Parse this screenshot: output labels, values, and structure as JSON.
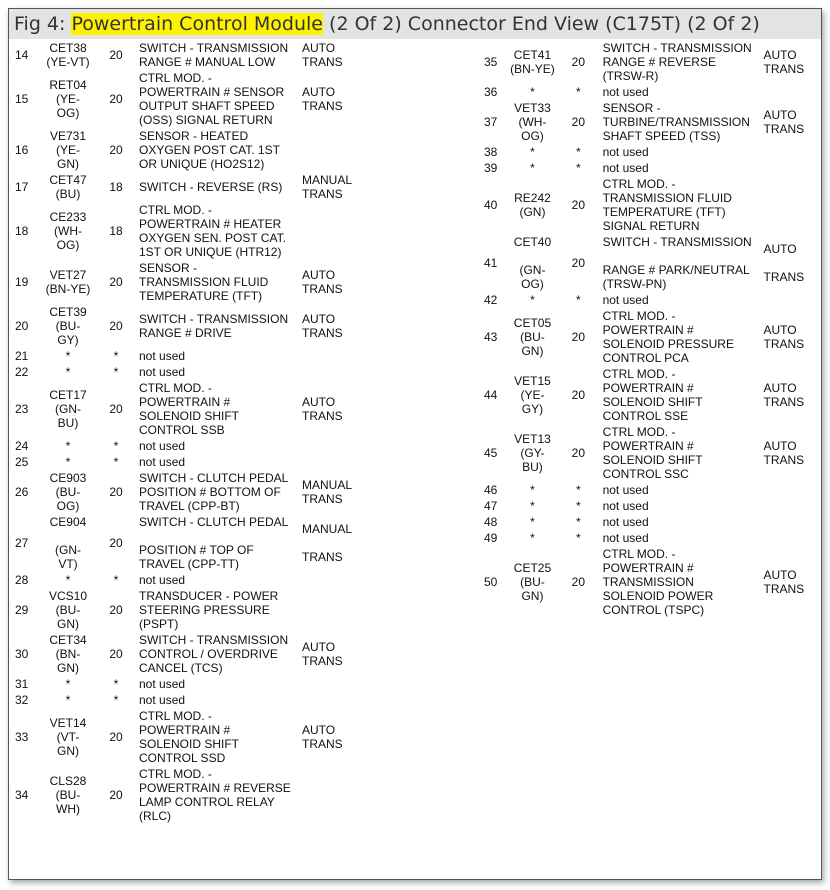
{
  "header": {
    "prefix": "Fig 4: ",
    "highlight": "Powertrain Control Module",
    "suffix": " (2 Of 2) Connector End View (C175T) (2 Of 2)"
  },
  "colors": {
    "highlight": "#fff200",
    "header_bg": "#e3e3e3"
  },
  "left_rows": [
    {
      "pin": "14",
      "wire": "CET38\n(YE-VT)",
      "gauge": "20",
      "desc": "SWITCH - TRANSMISSION\nRANGE # MANUAL LOW",
      "note": "AUTO\nTRANS"
    },
    {
      "pin": "15",
      "wire": "RET04\n(YE-\nOG)",
      "gauge": "20",
      "desc": "CTRL MOD. -\nPOWERTRAIN # SENSOR\nOUTPUT SHAFT SPEED\n(OSS) SIGNAL RETURN",
      "note": "AUTO\nTRANS"
    },
    {
      "pin": "16",
      "wire": "VE731\n(YE-\nGN)",
      "gauge": "20",
      "desc": "SENSOR - HEATED\nOXYGEN POST CAT. 1ST\nOR UNIQUE (HO2S12)",
      "note": ""
    },
    {
      "pin": "17",
      "wire": "CET47\n(BU)",
      "gauge": "18",
      "desc": "SWITCH - REVERSE (RS)",
      "note": "MANUAL\nTRANS"
    },
    {
      "pin": "18",
      "wire": "CE233\n(WH-\nOG)",
      "gauge": "18",
      "desc": "CTRL MOD. -\nPOWERTRAIN # HEATER\nOXYGEN SEN. POST CAT.\n1ST OR UNIQUE (HTR12)",
      "note": ""
    },
    {
      "pin": "19",
      "wire": "VET27\n(BN-YE)",
      "gauge": "20",
      "desc": "SENSOR -\nTRANSMISSION FLUID\nTEMPERATURE (TFT)",
      "note": "AUTO\nTRANS"
    },
    {
      "pin": "20",
      "wire": "CET39\n(BU-\nGY)",
      "gauge": "20",
      "desc": "SWITCH - TRANSMISSION\nRANGE # DRIVE",
      "note": "AUTO\nTRANS"
    },
    {
      "pin": "21",
      "wire": "*",
      "gauge": "*",
      "desc": "not used",
      "note": ""
    },
    {
      "pin": "22",
      "wire": "*",
      "gauge": "*",
      "desc": "not used",
      "note": ""
    },
    {
      "pin": "23",
      "wire": "CET17\n(GN-\nBU)",
      "gauge": "20",
      "desc": "CTRL MOD. -\nPOWERTRAIN #\nSOLENOID SHIFT\nCONTROL SSB",
      "note": "AUTO\nTRANS"
    },
    {
      "pin": "24",
      "wire": "*",
      "gauge": "*",
      "desc": "not used",
      "note": ""
    },
    {
      "pin": "25",
      "wire": "*",
      "gauge": "*",
      "desc": "not used",
      "note": ""
    },
    {
      "pin": "26",
      "wire": "CE903\n(BU-\nOG)",
      "gauge": "20",
      "desc": "SWITCH - CLUTCH PEDAL\nPOSITION # BOTTOM OF\nTRAVEL (CPP-BT)",
      "note": "MANUAL\nTRANS"
    },
    {
      "pin": "27",
      "wire": "CE904\n\n(GN-\nVT)",
      "gauge": "20",
      "desc": "SWITCH - CLUTCH PEDAL\n\nPOSITION # TOP OF\nTRAVEL (CPP-TT)",
      "note": "MANUAL\n\nTRANS\n"
    },
    {
      "pin": "28",
      "wire": "*",
      "gauge": "*",
      "desc": "not used",
      "note": ""
    },
    {
      "pin": "29",
      "wire": "VCS10\n(BU-\nGN)",
      "gauge": "20",
      "desc": "TRANSDUCER - POWER\nSTEERING PRESSURE\n(PSPT)",
      "note": ""
    },
    {
      "pin": "30",
      "wire": "CET34\n(BN-\nGN)",
      "gauge": "20",
      "desc": "SWITCH - TRANSMISSION\nCONTROL / OVERDRIVE\nCANCEL (TCS)",
      "note": "AUTO\nTRANS"
    },
    {
      "pin": "31",
      "wire": "*",
      "gauge": "*",
      "desc": "not used",
      "note": ""
    },
    {
      "pin": "32",
      "wire": "*",
      "gauge": "*",
      "desc": "not used",
      "note": ""
    },
    {
      "pin": "33",
      "wire": "VET14\n(VT-\nGN)",
      "gauge": "20",
      "desc": "CTRL MOD. -\nPOWERTRAIN #\nSOLENOID SHIFT\nCONTROL SSD",
      "note": "AUTO\nTRANS"
    },
    {
      "pin": "34",
      "wire": "CLS28\n(BU-\nWH)",
      "gauge": "20",
      "desc": "CTRL MOD. -\nPOWERTRAIN # REVERSE\nLAMP CONTROL RELAY\n(RLC)",
      "note": ""
    }
  ],
  "right_rows": [
    {
      "pin": "35",
      "wire": "CET41\n(BN-YE)",
      "gauge": "20",
      "desc": "SWITCH - TRANSMISSION\nRANGE # REVERSE\n(TRSW-R)",
      "note": "AUTO\nTRANS"
    },
    {
      "pin": "36",
      "wire": "*",
      "gauge": "*",
      "desc": "not used",
      "note": ""
    },
    {
      "pin": "37",
      "wire": "VET33\n(WH-\nOG)",
      "gauge": "20",
      "desc": "SENSOR -\nTURBINE/TRANSMISSION\nSHAFT SPEED (TSS)",
      "note": "AUTO\nTRANS"
    },
    {
      "pin": "38",
      "wire": "*",
      "gauge": "*",
      "desc": "not used",
      "note": ""
    },
    {
      "pin": "39",
      "wire": "*",
      "gauge": "*",
      "desc": "not used",
      "note": ""
    },
    {
      "pin": "40",
      "wire": "RE242\n(GN)",
      "gauge": "20",
      "desc": "CTRL MOD. -\nTRANSMISSION FLUID\nTEMPERATURE (TFT)\nSIGNAL RETURN",
      "note": ""
    },
    {
      "pin": "41",
      "wire": "CET40\n\n(GN-\nOG)",
      "gauge": "20",
      "desc": "SWITCH - TRANSMISSION\n\nRANGE # PARK/NEUTRAL\n(TRSW-PN)",
      "note": "AUTO\n\nTRANS\n"
    },
    {
      "pin": "42",
      "wire": "*",
      "gauge": "*",
      "desc": "not used",
      "note": ""
    },
    {
      "pin": "43",
      "wire": "CET05\n(BU-\nGN)",
      "gauge": "20",
      "desc": "CTRL MOD. -\nPOWERTRAIN #\nSOLENOID PRESSURE\nCONTROL PCA",
      "note": "AUTO\nTRANS"
    },
    {
      "pin": "44",
      "wire": "VET15\n(YE-\nGY)",
      "gauge": "20",
      "desc": "CTRL MOD. -\nPOWERTRAIN #\nSOLENOID SHIFT\nCONTROL SSE",
      "note": "AUTO\nTRANS"
    },
    {
      "pin": "45",
      "wire": "VET13\n(GY-\nBU)",
      "gauge": "20",
      "desc": "CTRL MOD. -\nPOWERTRAIN #\nSOLENOID SHIFT\nCONTROL SSC",
      "note": "AUTO\nTRANS"
    },
    {
      "pin": "46",
      "wire": "*",
      "gauge": "*",
      "desc": "not used",
      "note": ""
    },
    {
      "pin": "47",
      "wire": "*",
      "gauge": "*",
      "desc": "not used",
      "note": ""
    },
    {
      "pin": "48",
      "wire": "*",
      "gauge": "*",
      "desc": "not used",
      "note": ""
    },
    {
      "pin": "49",
      "wire": "*",
      "gauge": "*",
      "desc": "not used",
      "note": ""
    },
    {
      "pin": "50",
      "wire": "CET25\n(BU-\nGN)",
      "gauge": "20",
      "desc": "CTRL MOD. -\nPOWERTRAIN #\nTRANSMISSION\nSOLENOID POWER\nCONTROL (TSPC)",
      "note": "AUTO\nTRANS"
    }
  ]
}
